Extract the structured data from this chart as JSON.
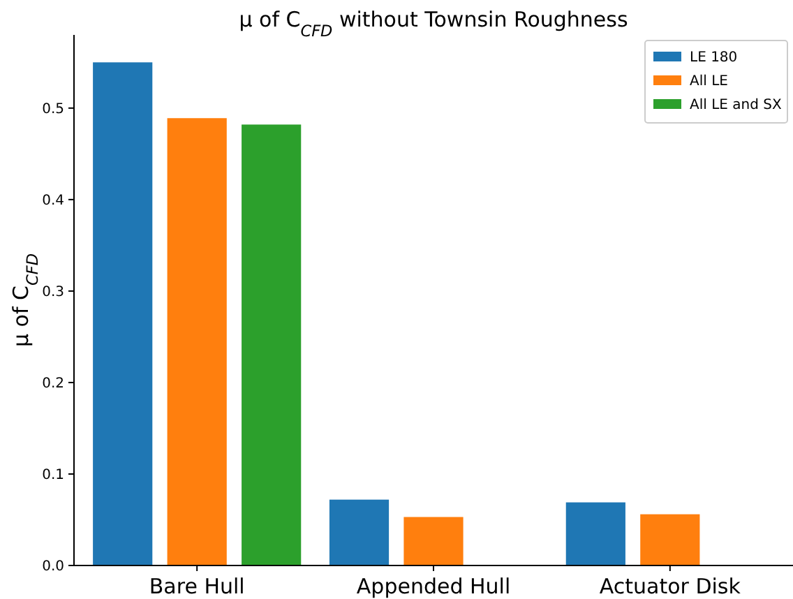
{
  "chart_data": {
    "type": "bar",
    "title": "μ of C$_{CFD}$ without Townsin Roughness",
    "ylabel": "μ of C$_{CFD}$",
    "categories": [
      "Bare Hull",
      "Appended Hull",
      "Actuator Disk"
    ],
    "series": [
      {
        "name": "LE 180",
        "color": "#1f77b4",
        "values": [
          0.55,
          0.072,
          0.069
        ]
      },
      {
        "name": "All LE",
        "color": "#ff7f0e",
        "values": [
          0.489,
          0.053,
          0.056
        ]
      },
      {
        "name": "All LE and SX",
        "color": "#2ca02c",
        "values": [
          0.482,
          null,
          null
        ]
      }
    ],
    "ylim": [
      0,
      0.58
    ],
    "yticks": [
      {
        "value": 0,
        "label": "0.0"
      },
      0.1,
      0.2,
      0.3,
      0.4,
      0.5
    ],
    "grid": false,
    "legend": "top right"
  }
}
